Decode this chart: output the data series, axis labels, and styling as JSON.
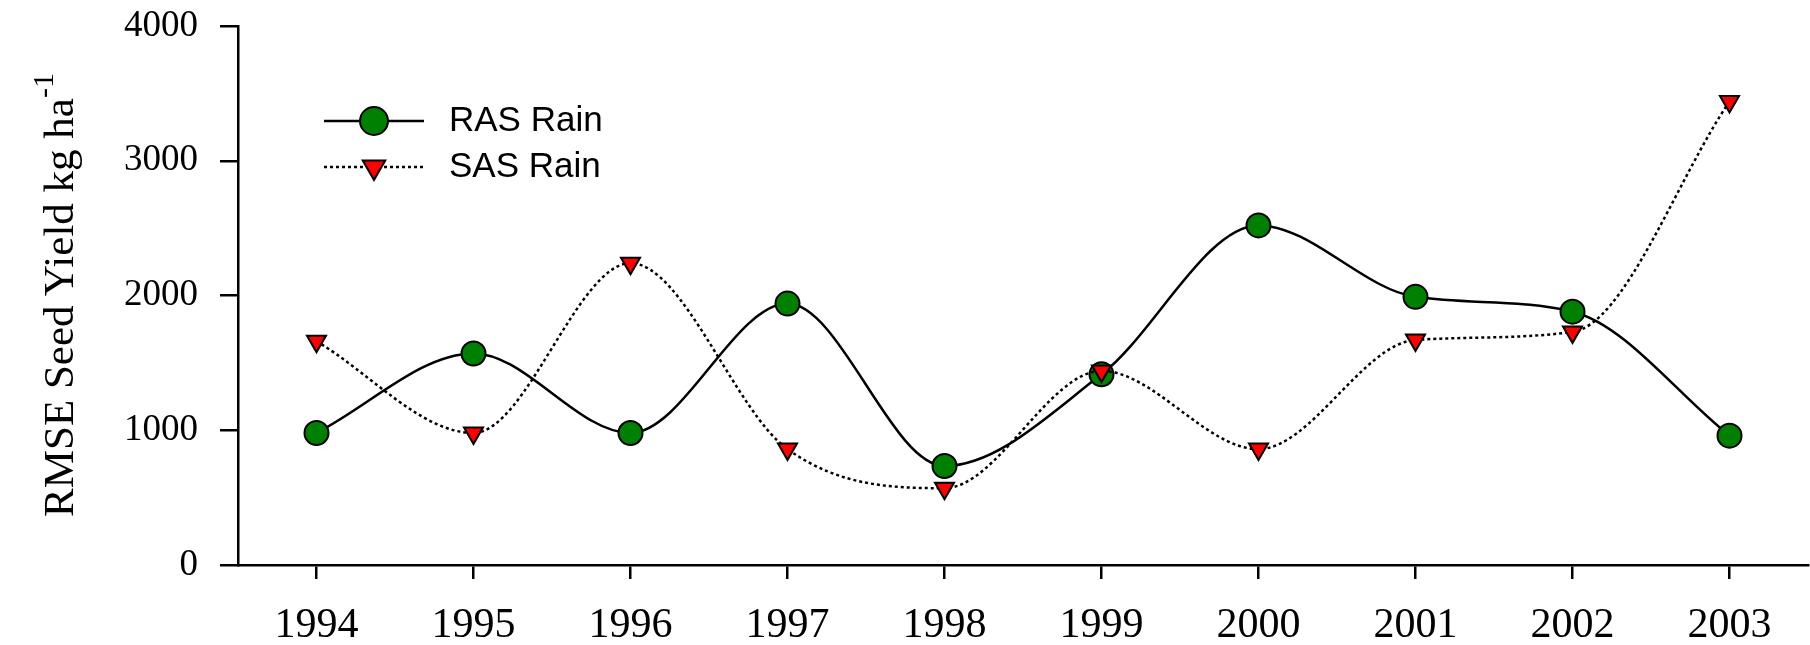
{
  "chart_data": {
    "type": "line",
    "ylabel": "RMSE Seed Yield kg ha$^{-1}$",
    "categories": [
      "1994",
      "1995",
      "1996",
      "1997",
      "1998",
      "1999",
      "2000",
      "2001",
      "2002",
      "2003"
    ],
    "series": [
      {
        "name": "RAS Rain",
        "color": "#008000",
        "marker": "circle",
        "line_style": "solid",
        "values": [
          980,
          1570,
          980,
          1940,
          735,
          1415,
          2520,
          1990,
          1880,
          960
        ]
      },
      {
        "name": "SAS Rain",
        "color": "#ff0000",
        "marker": "triangle",
        "line_style": "dotted",
        "values": [
          1660,
          980,
          2240,
          860,
          570,
          1440,
          860,
          1670,
          1730,
          3440
        ]
      }
    ],
    "ylim": [
      0,
      4000
    ],
    "yticks": [
      0,
      1000,
      2000,
      3000,
      4000
    ],
    "legend": "top left"
  }
}
